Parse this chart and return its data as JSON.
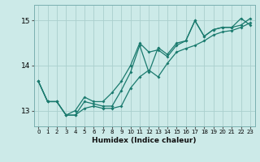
{
  "xlabel": "Humidex (Indice chaleur)",
  "background_color": "#cceae8",
  "grid_color": "#aacfcd",
  "line_color": "#1a7a6e",
  "xlim": [
    -0.5,
    23.5
  ],
  "ylim": [
    12.65,
    15.35
  ],
  "yticks": [
    13,
    14,
    15
  ],
  "xticks": [
    0,
    1,
    2,
    3,
    4,
    5,
    6,
    7,
    8,
    9,
    10,
    11,
    12,
    13,
    14,
    15,
    16,
    17,
    18,
    19,
    20,
    21,
    22,
    23
  ],
  "line1_x": [
    0,
    1,
    2,
    3,
    4,
    5,
    6,
    7,
    8,
    9,
    10,
    11,
    12,
    13,
    14,
    15,
    16,
    17,
    18,
    19,
    20,
    21,
    22,
    23
  ],
  "line1_y": [
    13.65,
    13.2,
    13.2,
    12.9,
    12.9,
    13.2,
    13.15,
    13.1,
    13.1,
    13.45,
    13.85,
    14.45,
    13.85,
    14.4,
    14.25,
    14.5,
    14.55,
    15.0,
    14.65,
    14.8,
    14.85,
    14.85,
    14.9,
    15.05
  ],
  "line2_x": [
    0,
    1,
    2,
    3,
    4,
    5,
    6,
    7,
    8,
    9,
    10,
    11,
    12,
    13,
    14,
    15,
    16,
    17,
    18,
    19,
    20,
    21,
    22,
    23
  ],
  "line2_y": [
    13.65,
    13.2,
    13.2,
    12.9,
    13.0,
    13.3,
    13.2,
    13.2,
    13.4,
    13.65,
    14.0,
    14.5,
    14.3,
    14.35,
    14.2,
    14.45,
    14.55,
    15.0,
    14.65,
    14.8,
    14.85,
    14.85,
    15.05,
    14.9
  ],
  "line3_x": [
    0,
    1,
    2,
    3,
    4,
    5,
    6,
    7,
    8,
    9,
    10,
    11,
    12,
    13,
    14,
    15,
    16,
    17,
    18,
    19,
    20,
    21,
    22,
    23
  ],
  "line3_y": [
    13.65,
    13.2,
    13.2,
    12.9,
    12.9,
    13.05,
    13.1,
    13.05,
    13.05,
    13.1,
    13.5,
    13.75,
    13.9,
    13.75,
    14.05,
    14.3,
    14.38,
    14.45,
    14.55,
    14.68,
    14.75,
    14.78,
    14.85,
    14.95
  ]
}
